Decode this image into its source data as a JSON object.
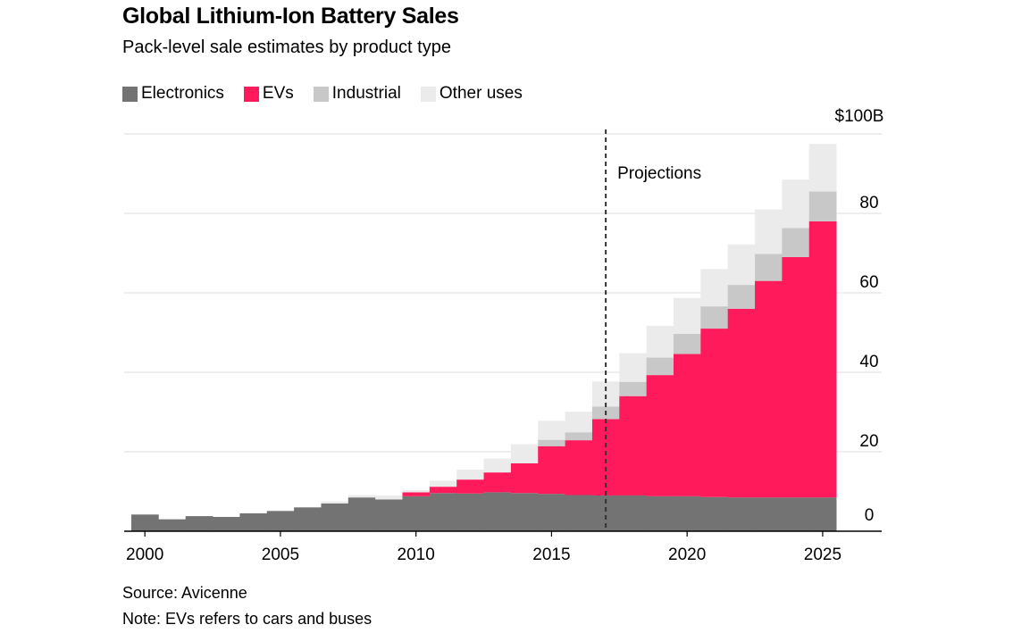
{
  "title": "Global Lithium-Ion Battery Sales",
  "subtitle": "Pack-level sale estimates by product type",
  "source": "Source: Avicenne",
  "note": "Note: EVs refers to cars and buses",
  "annotation": "Projections",
  "colors": {
    "Electronics": "#737373",
    "EVs": "#ff1a5b",
    "Industrial": "#c8c8c8",
    "Other uses": "#ebebeb"
  },
  "chart_data": {
    "type": "bar",
    "stacked": true,
    "title": "Global Lithium-Ion Battery Sales",
    "subtitle": "Pack-level sale estimates by product type",
    "categories": [
      2000,
      2001,
      2002,
      2003,
      2004,
      2005,
      2006,
      2007,
      2008,
      2009,
      2010,
      2011,
      2012,
      2013,
      2014,
      2015,
      2016,
      2017,
      2018,
      2019,
      2020,
      2021,
      2022,
      2023,
      2024,
      2025
    ],
    "series": [
      {
        "name": "Electronics",
        "values": [
          4.2,
          3.0,
          3.8,
          3.6,
          4.5,
          5.1,
          6.0,
          7.0,
          8.5,
          8.0,
          8.8,
          9.6,
          9.5,
          9.8,
          9.6,
          9.4,
          9.1,
          9.0,
          9.0,
          8.8,
          8.8,
          8.6,
          8.5,
          8.5,
          8.5,
          8.5
        ]
      },
      {
        "name": "EVs",
        "values": [
          0,
          0,
          0,
          0,
          0,
          0,
          0,
          0,
          0,
          0,
          1.0,
          1.6,
          3.5,
          5.0,
          7.5,
          12.0,
          13.8,
          19.2,
          25.0,
          30.5,
          35.8,
          42.4,
          47.5,
          54.5,
          60.5,
          69.5
        ]
      },
      {
        "name": "Industrial",
        "values": [
          0,
          0,
          0,
          0,
          0,
          0,
          0,
          0,
          0,
          0,
          0,
          0,
          0,
          0,
          0,
          1.6,
          2.0,
          3.2,
          3.6,
          4.4,
          5.1,
          5.6,
          6.0,
          6.8,
          7.3,
          7.5
        ]
      },
      {
        "name": "Other uses",
        "values": [
          0,
          0,
          0,
          0,
          0,
          0,
          0,
          0.5,
          0.6,
          1.0,
          0.6,
          1.5,
          2.5,
          3.5,
          4.8,
          4.8,
          5.2,
          6.3,
          7.2,
          8.0,
          9.0,
          9.4,
          10.2,
          11.2,
          12.2,
          12.0
        ]
      }
    ],
    "y_ticks": [
      "0",
      "20",
      "40",
      "60",
      "80",
      "$100B"
    ],
    "x_ticks": [
      "2000",
      "2005",
      "2010",
      "2015",
      "2020",
      "2025"
    ],
    "ylim": [
      0,
      100
    ],
    "projection_start": 2017.5,
    "grid": true,
    "y_axis_side": "right",
    "legend_position": "top-left"
  }
}
